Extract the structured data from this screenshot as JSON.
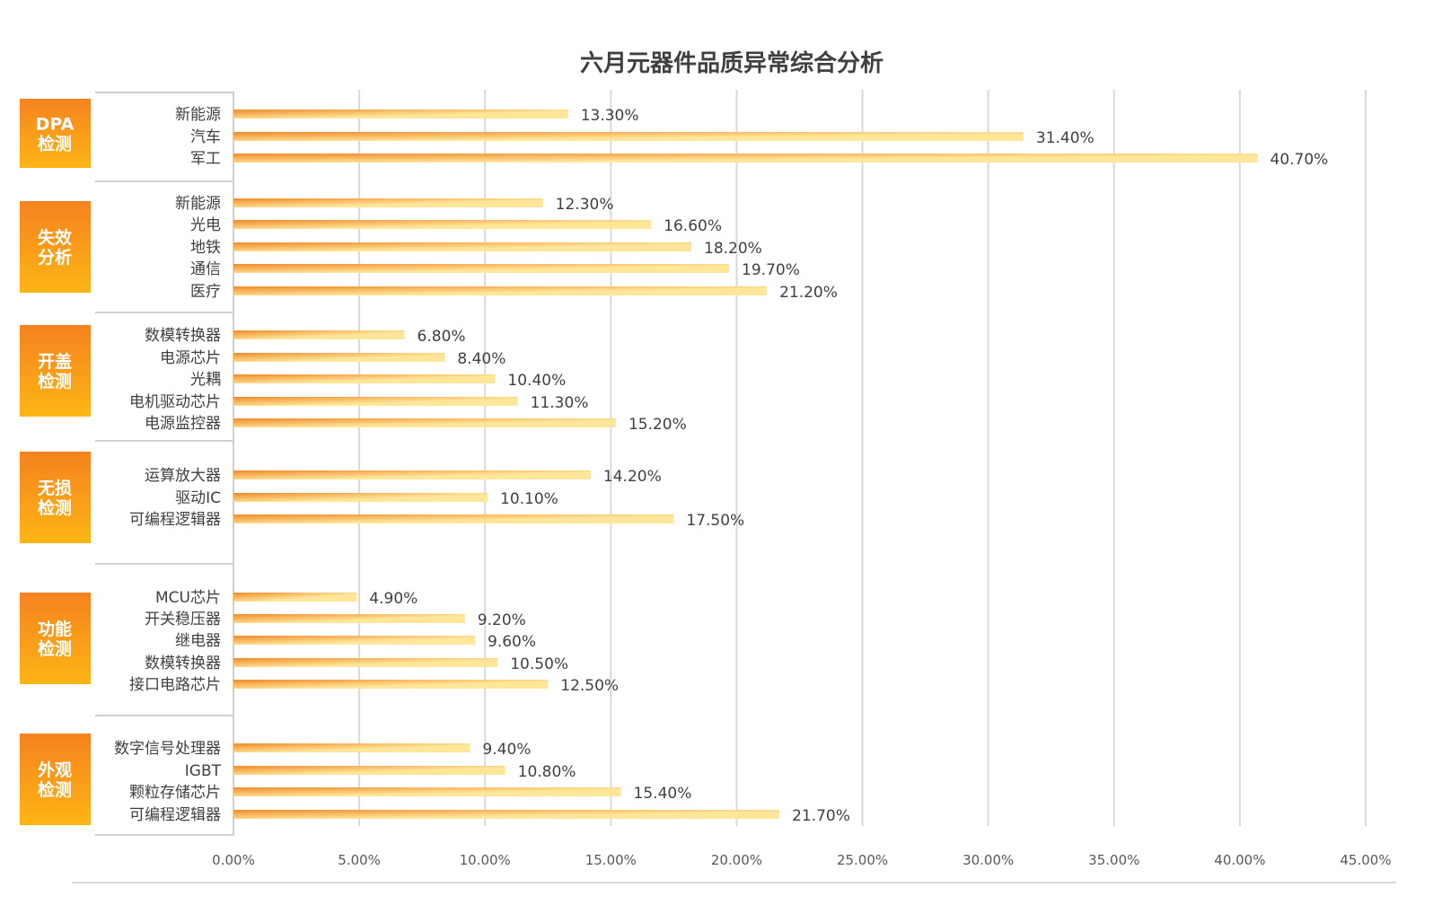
{
  "chart_data": {
    "type": "bar",
    "orientation": "horizontal",
    "title": "六月元器件品质异常综合分析",
    "xlim": [
      0,
      45
    ],
    "x_ticks": [
      "0.00%",
      "5.00%",
      "10.00%",
      "15.00%",
      "20.00%",
      "25.00%",
      "30.00%",
      "35.00%",
      "40.00%",
      "45.00%"
    ],
    "grid": true,
    "colors": {
      "bar_start": "#F08A2A",
      "bar_end": "#FFE699",
      "group_top": "#F5821F",
      "group_bottom": "#FDB515"
    },
    "groups": [
      {
        "name": [
          "DPA",
          "检测"
        ],
        "categories": [
          "新能源",
          "汽车",
          "军工"
        ],
        "values": [
          13.3,
          31.4,
          40.7
        ],
        "labels": [
          "13.30%",
          "31.40%",
          "40.70%"
        ]
      },
      {
        "name": [
          "失效",
          "分析"
        ],
        "categories": [
          "新能源",
          "光电",
          "地铁",
          "通信",
          "医疗"
        ],
        "values": [
          12.3,
          16.6,
          18.2,
          19.7,
          21.2
        ],
        "labels": [
          "12.30%",
          "16.60%",
          "18.20%",
          "19.70%",
          "21.20%"
        ]
      },
      {
        "name": [
          "开盖",
          "检测"
        ],
        "categories": [
          "数模转换器",
          "电源芯片",
          "光耦",
          "电机驱动芯片",
          "电源监控器"
        ],
        "values": [
          6.8,
          8.4,
          10.4,
          11.3,
          15.2
        ],
        "labels": [
          "6.80%",
          "8.40%",
          "10.40%",
          "11.30%",
          "15.20%"
        ]
      },
      {
        "name": [
          "无损",
          "检测"
        ],
        "categories": [
          "运算放大器",
          "驱动IC",
          "可编程逻辑器"
        ],
        "values": [
          14.2,
          10.1,
          17.5
        ],
        "labels": [
          "14.20%",
          "10.10%",
          "17.50%"
        ]
      },
      {
        "name": [
          "功能",
          "检测"
        ],
        "categories": [
          "MCU芯片",
          "开关稳压器",
          "继电器",
          "数模转换器",
          "接口电路芯片"
        ],
        "values": [
          4.9,
          9.2,
          9.6,
          10.5,
          12.5
        ],
        "labels": [
          "4.90%",
          "9.20%",
          "9.60%",
          "10.50%",
          "12.50%"
        ]
      },
      {
        "name": [
          "外观",
          "检测"
        ],
        "categories": [
          "数字信号处理器",
          "IGBT",
          "颗粒存储芯片",
          "可编程逻辑器"
        ],
        "values": [
          9.4,
          10.8,
          15.4,
          21.7
        ],
        "labels": [
          "9.40%",
          "10.80%",
          "15.40%",
          "21.70%"
        ]
      }
    ]
  }
}
